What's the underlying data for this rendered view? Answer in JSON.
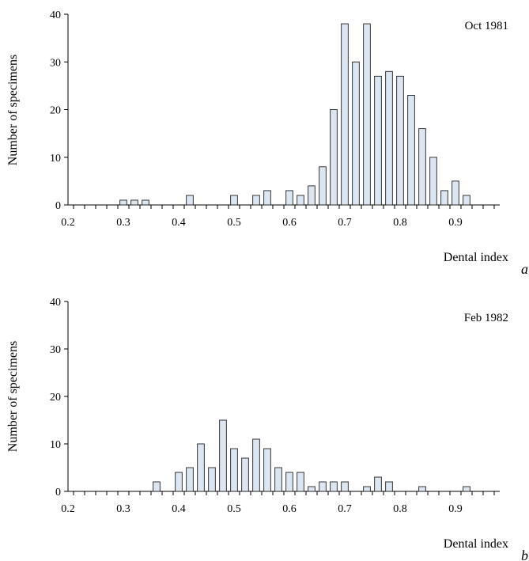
{
  "chart_data": [
    {
      "type": "bar",
      "panel_label": "a",
      "annotation": "Oct 1981",
      "xlabel": "Dental index",
      "ylabel": "Number of specimens",
      "xlim": [
        0.2,
        0.98
      ],
      "ylim": [
        0,
        40
      ],
      "x_tick_labels": [
        "0.2",
        "0.3",
        "0.4",
        "0.5",
        "0.6",
        "0.7",
        "0.8",
        "0.9"
      ],
      "y_tick_labels": [
        "0",
        "10",
        "20",
        "30",
        "40"
      ],
      "grid": false,
      "x": [
        0.3,
        0.32,
        0.34,
        0.42,
        0.5,
        0.54,
        0.56,
        0.6,
        0.62,
        0.64,
        0.66,
        0.68,
        0.7,
        0.72,
        0.74,
        0.76,
        0.78,
        0.8,
        0.82,
        0.84,
        0.86,
        0.88,
        0.9,
        0.92
      ],
      "values": [
        1,
        1,
        1,
        2,
        2,
        2,
        3,
        3,
        2,
        4,
        8,
        20,
        38,
        30,
        38,
        27,
        28,
        27,
        23,
        16,
        10,
        3,
        5,
        2
      ]
    },
    {
      "type": "bar",
      "panel_label": "b",
      "annotation": "Feb 1982",
      "xlabel": "Dental index",
      "ylabel": "Number of specimens",
      "xlim": [
        0.2,
        0.98
      ],
      "ylim": [
        0,
        40
      ],
      "x_tick_labels": [
        "0.2",
        "0.3",
        "0.4",
        "0.5",
        "0.6",
        "0.7",
        "0.8",
        "0.9"
      ],
      "y_tick_labels": [
        "0",
        "10",
        "20",
        "30",
        "40"
      ],
      "grid": false,
      "x": [
        0.36,
        0.4,
        0.42,
        0.44,
        0.46,
        0.48,
        0.5,
        0.52,
        0.54,
        0.56,
        0.58,
        0.6,
        0.62,
        0.64,
        0.66,
        0.68,
        0.7,
        0.74,
        0.76,
        0.78,
        0.84,
        0.92
      ],
      "values": [
        2,
        4,
        5,
        10,
        5,
        15,
        9,
        7,
        11,
        9,
        5,
        4,
        4,
        1,
        2,
        2,
        2,
        1,
        3,
        2,
        1,
        1
      ]
    }
  ]
}
